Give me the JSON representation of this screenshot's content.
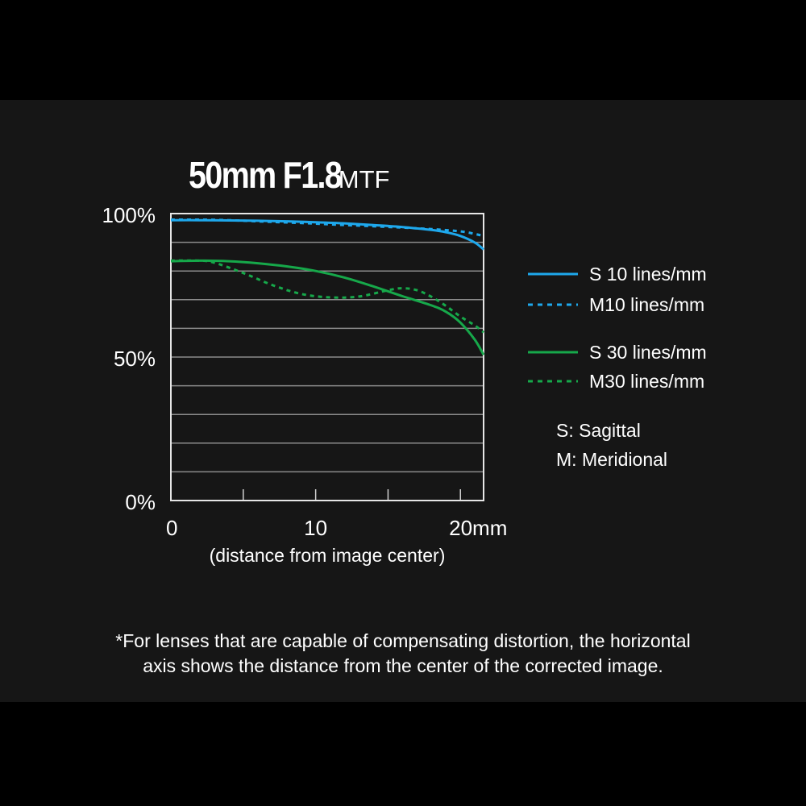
{
  "title": {
    "main": "50mm F1.8",
    "sub": "MTF"
  },
  "chart_data": {
    "type": "line",
    "title": "50mm F1.8 MTF",
    "xlabel": "(distance from image center)",
    "ylabel": "",
    "xlim": [
      0,
      21.6
    ],
    "ylim": [
      0,
      100
    ],
    "x_ticks": [
      {
        "value": 0,
        "label": "0"
      },
      {
        "value": 10,
        "label": "10"
      },
      {
        "value": 20,
        "label": "20mm"
      }
    ],
    "y_ticks": [
      {
        "value": 100,
        "label": "100%"
      },
      {
        "value": 50,
        "label": "50%"
      },
      {
        "value": 0,
        "label": "0%"
      }
    ],
    "grid": {
      "y_step": 10,
      "x_minor": [
        5,
        10,
        15,
        20
      ]
    },
    "legend_position": "right",
    "series": [
      {
        "name": "S 10 lines/mm",
        "color": "#1ea8ec",
        "dashed": false,
        "x": [
          0,
          2,
          4,
          6,
          8,
          10,
          12,
          14,
          16,
          18,
          19,
          20,
          21,
          21.6
        ],
        "y": [
          97.7,
          97.7,
          97.6,
          97.5,
          97.3,
          97.0,
          96.6,
          96.0,
          95.3,
          94.3,
          93.5,
          92.2,
          89.9,
          87.5
        ]
      },
      {
        "name": "M10 lines/mm",
        "color": "#1ea8ec",
        "dashed": true,
        "x": [
          0,
          2,
          4,
          6,
          8,
          10,
          12,
          14,
          16,
          18,
          20,
          21,
          21.6
        ],
        "y": [
          97.9,
          97.9,
          97.7,
          97.3,
          96.9,
          96.5,
          96.0,
          95.6,
          95.1,
          94.6,
          93.8,
          92.9,
          92.2
        ]
      },
      {
        "name": "S 30 lines/mm",
        "color": "#16a84a",
        "dashed": false,
        "x": [
          0,
          2,
          4,
          6,
          8,
          10,
          12,
          14,
          16,
          18,
          19,
          20,
          21,
          21.6
        ],
        "y": [
          83.4,
          83.6,
          83.4,
          82.7,
          81.6,
          80.0,
          77.7,
          74.6,
          71.2,
          68.0,
          65.8,
          62.0,
          56.0,
          50.8
        ]
      },
      {
        "name": "M30 lines/mm",
        "color": "#16a84a",
        "dashed": true,
        "x": [
          0,
          2,
          3,
          5,
          7,
          9,
          11,
          13,
          15,
          16,
          17,
          18,
          19,
          20,
          21,
          21.6
        ],
        "y": [
          83.6,
          83.6,
          82.9,
          79.3,
          75.1,
          72.0,
          70.8,
          71.1,
          73.3,
          74.0,
          73.3,
          71.0,
          67.8,
          64.1,
          61.0,
          58.6
        ]
      }
    ],
    "legend_notes": [
      "S: Sagittal",
      "M: Meridional"
    ]
  },
  "footnote": {
    "line1": "*For lenses that are capable of compensating distortion, the horizontal",
    "line2": "axis shows the distance from the center of the corrected image."
  }
}
